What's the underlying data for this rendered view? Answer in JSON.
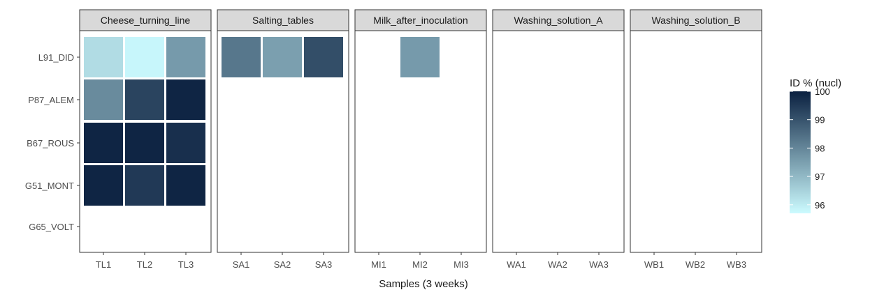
{
  "chart_data": {
    "type": "heatmap",
    "xlabel": "Samples (3 weeks)",
    "legend": {
      "title": "ID % (nucl)",
      "range": [
        95.7,
        100
      ],
      "ticks": [
        96,
        97,
        98,
        99,
        100
      ],
      "color_low": "#ccfbff",
      "color_high": "#0a2040",
      "placement": "right"
    },
    "rows": [
      "L91_DID",
      "P87_ALEM",
      "B67_ROUS",
      "G51_MONT",
      "G65_VOLT"
    ],
    "facets": [
      {
        "name": "Cheese_turning_line",
        "columns": [
          "TL1",
          "TL2",
          "TL3"
        ]
      },
      {
        "name": "Salting_tables",
        "columns": [
          "SA1",
          "SA2",
          "SA3"
        ]
      },
      {
        "name": "Milk_after_inoculation",
        "columns": [
          "MI1",
          "MI2",
          "MI3"
        ]
      },
      {
        "name": "Washing_solution_A",
        "columns": [
          "WA1",
          "WA2",
          "WA3"
        ]
      },
      {
        "name": "Washing_solution_B",
        "columns": [
          "WB1",
          "WB2",
          "WB3"
        ]
      }
    ],
    "cells": [
      {
        "facet": "Cheese_turning_line",
        "column": "TL1",
        "row": "L91_DID",
        "value": 96.3
      },
      {
        "facet": "Cheese_turning_line",
        "column": "TL2",
        "row": "L91_DID",
        "value": 95.8
      },
      {
        "facet": "Cheese_turning_line",
        "column": "TL3",
        "row": "L91_DID",
        "value": 97.6
      },
      {
        "facet": "Cheese_turning_line",
        "column": "TL1",
        "row": "P87_ALEM",
        "value": 97.9
      },
      {
        "facet": "Cheese_turning_line",
        "column": "TL2",
        "row": "P87_ALEM",
        "value": 99.3
      },
      {
        "facet": "Cheese_turning_line",
        "column": "TL3",
        "row": "P87_ALEM",
        "value": 99.9
      },
      {
        "facet": "Cheese_turning_line",
        "column": "TL1",
        "row": "B67_ROUS",
        "value": 99.9
      },
      {
        "facet": "Cheese_turning_line",
        "column": "TL2",
        "row": "B67_ROUS",
        "value": 99.9
      },
      {
        "facet": "Cheese_turning_line",
        "column": "TL3",
        "row": "B67_ROUS",
        "value": 99.7
      },
      {
        "facet": "Cheese_turning_line",
        "column": "TL1",
        "row": "G51_MONT",
        "value": 99.9
      },
      {
        "facet": "Cheese_turning_line",
        "column": "TL2",
        "row": "G51_MONT",
        "value": 99.5
      },
      {
        "facet": "Cheese_turning_line",
        "column": "TL3",
        "row": "G51_MONT",
        "value": 99.9
      },
      {
        "facet": "Salting_tables",
        "column": "SA1",
        "row": "L91_DID",
        "value": 98.3
      },
      {
        "facet": "Salting_tables",
        "column": "SA2",
        "row": "L91_DID",
        "value": 97.5
      },
      {
        "facet": "Salting_tables",
        "column": "SA3",
        "row": "L91_DID",
        "value": 99.1
      },
      {
        "facet": "Milk_after_inoculation",
        "column": "MI2",
        "row": "L91_DID",
        "value": 97.6
      }
    ]
  }
}
